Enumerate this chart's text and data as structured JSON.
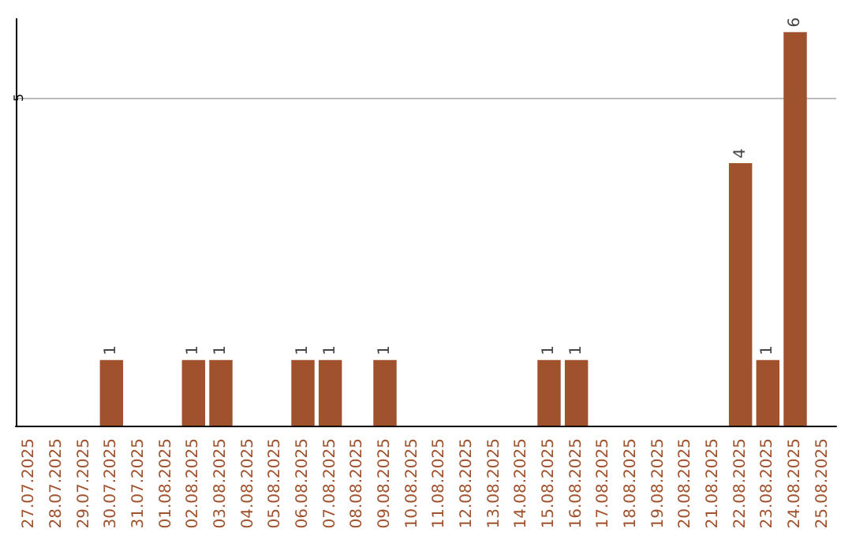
{
  "chart_data": {
    "type": "bar",
    "categories": [
      "27.07.2025",
      "28.07.2025",
      "29.07.2025",
      "30.07.2025",
      "31.07.2025",
      "01.08.2025",
      "02.08.2025",
      "03.08.2025",
      "04.08.2025",
      "05.08.2025",
      "06.08.2025",
      "07.08.2025",
      "08.08.2025",
      "09.08.2025",
      "10.08.2025",
      "11.08.2025",
      "12.08.2025",
      "13.08.2025",
      "14.08.2025",
      "15.08.2025",
      "16.08.2025",
      "17.08.2025",
      "18.08.2025",
      "19.08.2025",
      "20.08.2025",
      "21.08.2025",
      "22.08.2025",
      "23.08.2025",
      "24.08.2025",
      "25.08.2025"
    ],
    "values": [
      0,
      0,
      0,
      1,
      0,
      0,
      1,
      1,
      0,
      0,
      1,
      1,
      0,
      1,
      0,
      0,
      0,
      0,
      0,
      1,
      1,
      0,
      0,
      0,
      0,
      0,
      4,
      1,
      6,
      0
    ],
    "value_labels": [
      null,
      null,
      null,
      "1",
      null,
      null,
      "1",
      "1",
      null,
      null,
      "1",
      "1",
      null,
      "1",
      null,
      null,
      null,
      null,
      null,
      "1",
      "1",
      null,
      null,
      null,
      null,
      null,
      "4",
      "1",
      "6",
      null
    ],
    "color": "#a0522d",
    "ylim": [
      0,
      6.2
    ],
    "yticks": [
      5
    ],
    "grid": "y"
  }
}
